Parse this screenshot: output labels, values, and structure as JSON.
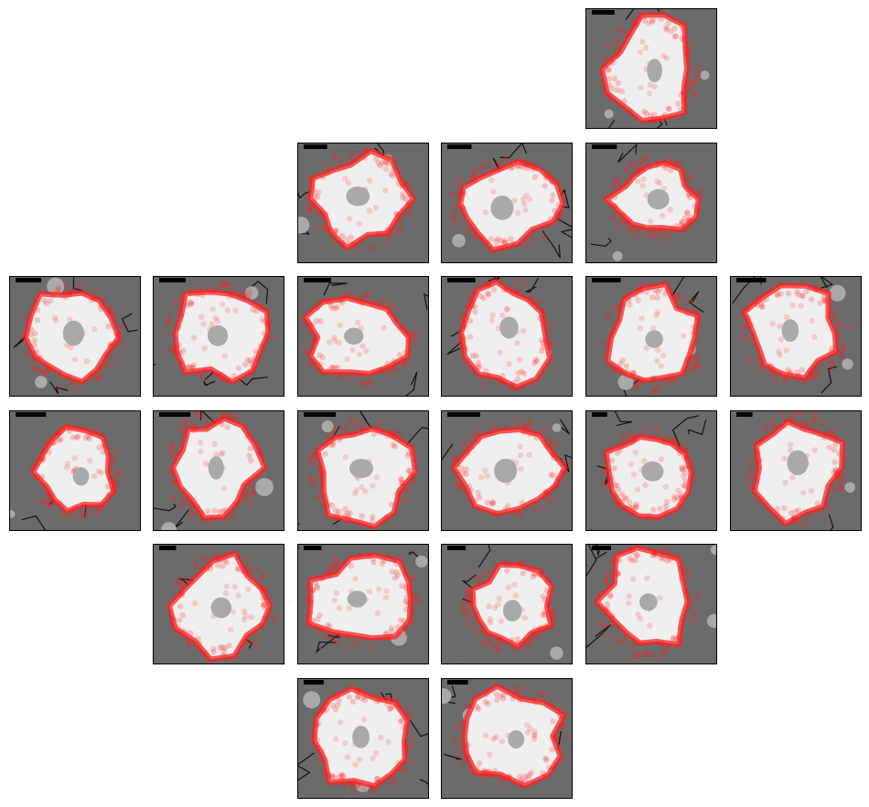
{
  "figure": {
    "panels": [
      {
        "row": 0,
        "col": 4
      },
      {
        "row": 1,
        "col": 2
      },
      {
        "row": 1,
        "col": 3
      },
      {
        "row": 1,
        "col": 4
      },
      {
        "row": 2,
        "col": 0
      },
      {
        "row": 2,
        "col": 1
      },
      {
        "row": 2,
        "col": 2
      },
      {
        "row": 2,
        "col": 3
      },
      {
        "row": 2,
        "col": 4
      },
      {
        "row": 2,
        "col": 5
      },
      {
        "row": 3,
        "col": 0
      },
      {
        "row": 3,
        "col": 1
      },
      {
        "row": 3,
        "col": 2
      },
      {
        "row": 3,
        "col": 3
      },
      {
        "row": 3,
        "col": 4
      },
      {
        "row": 3,
        "col": 5
      },
      {
        "row": 4,
        "col": 1
      },
      {
        "row": 4,
        "col": 2
      },
      {
        "row": 4,
        "col": 3
      },
      {
        "row": 4,
        "col": 4
      },
      {
        "row": 5,
        "col": 2
      },
      {
        "row": 5,
        "col": 3
      }
    ],
    "colors": {
      "background": "#6b6b6b",
      "cell": "#efefef",
      "boundary": "#ff2020",
      "nucleus": "#a9a9a9",
      "edges": "#111111",
      "scale_bar": "#000000"
    }
  }
}
